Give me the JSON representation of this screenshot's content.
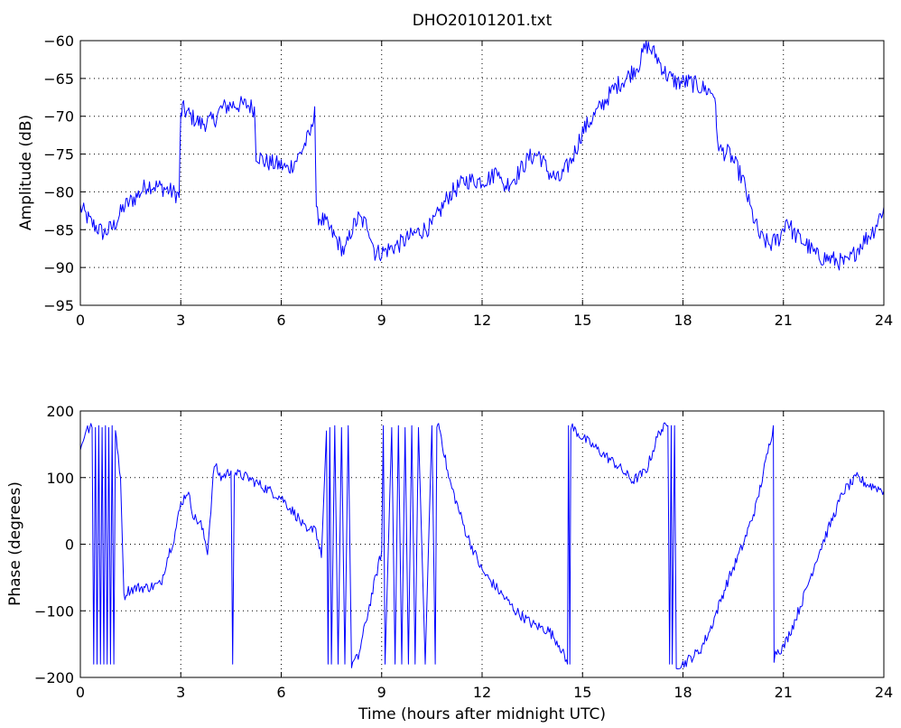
{
  "figure": {
    "title": "DHO20101201.txt",
    "background": "#ffffff",
    "line_color": "#0000ff"
  },
  "chart_data": [
    {
      "type": "line",
      "title": "DHO20101201.txt",
      "xlabel": "",
      "ylabel": "Amplitude (dB)",
      "xlim": [
        0,
        24
      ],
      "ylim": [
        -95,
        -60
      ],
      "xticks": [
        0,
        3,
        6,
        9,
        12,
        15,
        18,
        21,
        24
      ],
      "yticks": [
        -95,
        -90,
        -85,
        -80,
        -75,
        -70,
        -65,
        -60
      ],
      "xtick_labels": [
        "0",
        "3",
        "6",
        "9",
        "12",
        "15",
        "18",
        "21",
        "24"
      ],
      "ytick_labels": [
        "−95",
        "−90",
        "−85",
        "−80",
        "−75",
        "−70",
        "−65",
        "−60"
      ],
      "grid": true,
      "series": [
        {
          "color": "#0000ff",
          "noise": 1.2,
          "x": [
            0,
            0.3,
            0.7,
            1.0,
            1.3,
            1.7,
            2.0,
            2.5,
            2.95,
            3.0,
            3.05,
            3.3,
            3.6,
            4.0,
            4.2,
            4.5,
            5.0,
            5.2,
            5.25,
            5.5,
            6.0,
            6.2,
            6.5,
            6.9,
            7.0,
            7.05,
            7.3,
            7.6,
            7.9,
            8.1,
            8.3,
            8.6,
            8.8,
            9.0,
            9.5,
            10.0,
            10.5,
            11.0,
            11.5,
            12.0,
            12.3,
            12.5,
            12.6,
            13.0,
            13.4,
            13.7,
            14.0,
            14.3,
            14.7,
            15.0,
            15.5,
            16.0,
            16.3,
            16.7,
            16.9,
            17.2,
            17.5,
            17.8,
            18.2,
            18.7,
            18.95,
            19.0,
            19.1,
            19.4,
            19.8,
            20.0,
            20.3,
            20.6,
            20.9,
            21.1,
            21.3,
            21.7,
            22.0,
            22.5,
            22.9,
            23.3,
            23.7,
            24.0
          ],
          "y": [
            -82,
            -84,
            -85.5,
            -84.5,
            -82,
            -80.5,
            -79,
            -79.5,
            -80.5,
            -70,
            -69,
            -70,
            -71,
            -70.5,
            -69,
            -68.5,
            -68.5,
            -69,
            -75,
            -76,
            -76.5,
            -77,
            -75.5,
            -72,
            -68.5,
            -83,
            -84,
            -86,
            -88,
            -85,
            -83.5,
            -84.5,
            -88,
            -88,
            -87,
            -85.5,
            -84.5,
            -80.5,
            -78.5,
            -78.5,
            -78,
            -76.5,
            -79.5,
            -78,
            -75.5,
            -75,
            -77.5,
            -78.5,
            -75.5,
            -72,
            -69,
            -66,
            -65,
            -63,
            -60.5,
            -62,
            -64.5,
            -65.5,
            -65.5,
            -66.5,
            -67,
            -72,
            -74.5,
            -75,
            -78.5,
            -82,
            -86,
            -87,
            -86,
            -83.5,
            -85.5,
            -87,
            -88.5,
            -89,
            -89.5,
            -87,
            -85,
            -82
          ]
        }
      ]
    },
    {
      "type": "line",
      "title": "",
      "xlabel": "Time (hours after midnight UTC)",
      "ylabel": "Phase (degrees)",
      "xlim": [
        0,
        24
      ],
      "ylim": [
        -200,
        200
      ],
      "xticks": [
        0,
        3,
        6,
        9,
        12,
        15,
        18,
        21,
        24
      ],
      "yticks": [
        -200,
        -100,
        0,
        100,
        200
      ],
      "xtick_labels": [
        "0",
        "3",
        "6",
        "9",
        "12",
        "15",
        "18",
        "21",
        "24"
      ],
      "ytick_labels": [
        "−200",
        "−100",
        "0",
        "100",
        "200"
      ],
      "grid": true,
      "series": [
        {
          "color": "#0000ff",
          "noise": 8,
          "x": [
            0,
            0.15,
            0.35,
            0.4,
            0.45,
            0.5,
            0.55,
            0.6,
            0.65,
            0.7,
            0.75,
            0.8,
            0.85,
            0.9,
            0.95,
            1.0,
            1.05,
            1.1,
            1.2,
            1.3,
            1.4,
            1.7,
            2.0,
            2.4,
            2.6,
            2.8,
            3.0,
            3.2,
            3.4,
            3.6,
            3.8,
            4.0,
            4.2,
            4.5,
            4.55,
            4.6,
            4.7,
            5.0,
            5.5,
            6.0,
            6.5,
            6.8,
            7.0,
            7.2,
            7.35,
            7.4,
            7.45,
            7.5,
            7.6,
            7.7,
            7.8,
            7.9,
            8.0,
            8.1,
            8.3,
            8.6,
            9.0,
            9.05,
            9.1,
            9.3,
            9.4,
            9.5,
            9.6,
            9.7,
            9.8,
            9.9,
            10.0,
            10.1,
            10.3,
            10.5,
            10.6,
            10.65,
            10.7,
            10.75,
            11.0,
            11.5,
            12.0,
            12.5,
            13.0,
            13.5,
            14.0,
            14.3,
            14.55,
            14.58,
            14.62,
            14.65,
            14.7,
            15.0,
            15.5,
            16.0,
            16.5,
            16.9,
            17.3,
            17.55,
            17.6,
            17.65,
            17.68,
            17.75,
            17.8,
            18.0,
            18.5,
            18.8,
            19.3,
            19.8,
            20.2,
            20.5,
            20.7,
            20.72,
            20.8,
            21.0,
            21.3,
            21.6,
            22.0,
            22.4,
            22.8,
            23.2,
            23.5,
            23.8,
            24.0
          ],
          "y": [
            140,
            170,
            175,
            -180,
            175,
            -180,
            178,
            -180,
            175,
            -180,
            178,
            -180,
            175,
            -180,
            178,
            -180,
            170,
            150,
            100,
            -80,
            -70,
            -65,
            -65,
            -60,
            -20,
            10,
            60,
            80,
            40,
            30,
            -10,
            120,
            100,
            110,
            -180,
            110,
            105,
            100,
            85,
            70,
            40,
            15,
            30,
            -20,
            170,
            -180,
            175,
            -180,
            178,
            -180,
            175,
            -180,
            178,
            -180,
            -170,
            -100,
            -10,
            178,
            -180,
            175,
            -180,
            178,
            -180,
            175,
            -180,
            178,
            -180,
            175,
            -180,
            178,
            -180,
            175,
            180,
            170,
            100,
            20,
            -40,
            -70,
            -100,
            -120,
            -130,
            -150,
            -180,
            178,
            -180,
            178,
            175,
            160,
            140,
            120,
            95,
            110,
            170,
            178,
            -180,
            178,
            -180,
            178,
            -180,
            -180,
            -160,
            -130,
            -60,
            0,
            60,
            130,
            178,
            -170,
            -160,
            -155,
            -120,
            -80,
            -20,
            30,
            80,
            100,
            90,
            85,
            80
          ]
        }
      ]
    }
  ]
}
